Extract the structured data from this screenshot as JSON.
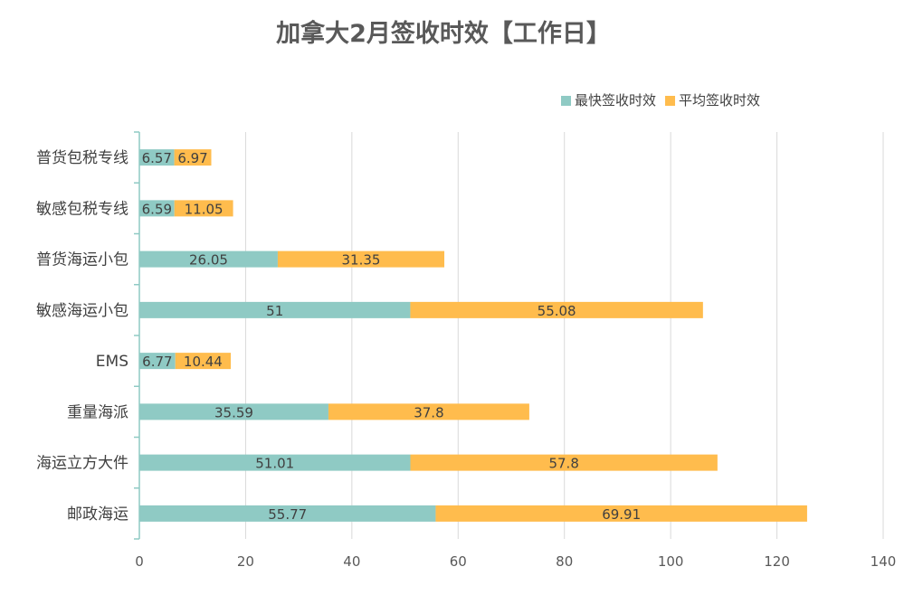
{
  "chart_data": {
    "type": "bar",
    "orientation": "horizontal",
    "stacked": true,
    "title": "加拿大2月签收时效【工作日】",
    "categories": [
      "普货包税专线",
      "敏感包税专线",
      "普货海运小包",
      "敏感海运小包",
      "EMS",
      "重量海派",
      "海运立方大件",
      "邮政海运"
    ],
    "series": [
      {
        "name": "最快签收时效",
        "color": "#8FCAC4",
        "values": [
          6.57,
          6.59,
          26.05,
          51,
          6.77,
          35.59,
          51.01,
          55.77
        ],
        "labels": [
          "6.57",
          "6.59",
          "26.05",
          "51",
          "6.77",
          "35.59",
          "51.01",
          "55.77"
        ]
      },
      {
        "name": "平均签收时效",
        "color": "#FFBC4D",
        "values": [
          6.97,
          11.05,
          31.35,
          55.08,
          10.44,
          37.8,
          57.8,
          69.91
        ],
        "labels": [
          "6.97",
          "11.05",
          "31.35",
          "55.08",
          "10.44",
          "37.8",
          "57.8",
          "69.91"
        ]
      }
    ],
    "xlim": [
      0,
      140
    ],
    "xticks": [
      "0",
      "20",
      "40",
      "60",
      "80",
      "100",
      "120",
      "140"
    ],
    "grid": true,
    "legend_position": "top-right"
  }
}
